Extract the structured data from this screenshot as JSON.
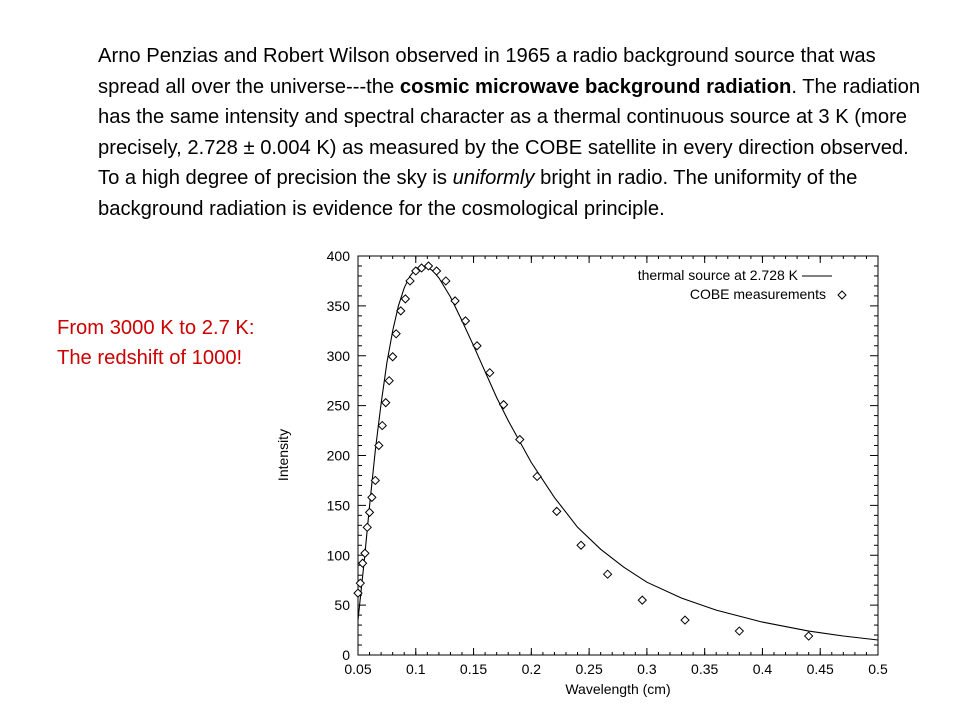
{
  "paragraph": {
    "t1": "Arno Penzias and Robert Wilson observed in 1965 a radio background source that was spread all over the universe---the ",
    "bold": "cosmic microwave background radiation",
    "t2": ". The radiation has the same intensity and spectral character as a thermal continuous source at 3 K (more precisely, 2.728 ± 0.004 K) as measured by the COBE satellite in every direction observed. To a high degree of precision the sky is ",
    "italic": "uniformly",
    "t3": " bright in radio. The uniformity of the background radiation is evidence for the cosmological principle."
  },
  "note": {
    "line1": "From 3000 K to 2.7 K:",
    "line2": "The redshift of 1000!",
    "color": "#cc0000"
  },
  "chart_data": {
    "type": "line",
    "xlabel": "Wavelength (cm)",
    "ylabel": "Intensity",
    "xlim": [
      0.05,
      0.5
    ],
    "ylim": [
      0,
      400
    ],
    "xticks": [
      "0.05",
      "0.1",
      "0.15",
      "0.2",
      "0.25",
      "0.3",
      "0.35",
      "0.4",
      "0.45",
      "0.5"
    ],
    "yticks": [
      "0",
      "50",
      "100",
      "150",
      "200",
      "250",
      "300",
      "350",
      "400"
    ],
    "grid": false,
    "legend_position": "top-right",
    "series": [
      {
        "name": "thermal source at 2.728 K",
        "style": "line",
        "x": [
          0.05,
          0.055,
          0.06,
          0.065,
          0.07,
          0.075,
          0.08,
          0.085,
          0.09,
          0.095,
          0.1,
          0.105,
          0.11,
          0.115,
          0.12,
          0.13,
          0.14,
          0.15,
          0.16,
          0.17,
          0.18,
          0.2,
          0.22,
          0.24,
          0.26,
          0.28,
          0.3,
          0.33,
          0.36,
          0.4,
          0.44,
          0.47,
          0.5
        ],
        "values": [
          35,
          90,
          150,
          205,
          252,
          293,
          325,
          350,
          368,
          380,
          387,
          390,
          389,
          385,
          378,
          359,
          335,
          310,
          284,
          258,
          235,
          193,
          158,
          128,
          106,
          88,
          73,
          57,
          45,
          33,
          24,
          19,
          15
        ]
      },
      {
        "name": "COBE measurements",
        "style": "diamond",
        "x": [
          0.05,
          0.052,
          0.054,
          0.056,
          0.058,
          0.06,
          0.062,
          0.065,
          0.068,
          0.071,
          0.074,
          0.077,
          0.08,
          0.083,
          0.087,
          0.091,
          0.095,
          0.1,
          0.105,
          0.111,
          0.118,
          0.126,
          0.134,
          0.143,
          0.153,
          0.164,
          0.176,
          0.19,
          0.205,
          0.222,
          0.243,
          0.266,
          0.296,
          0.333,
          0.38,
          0.44
        ],
        "values": [
          62,
          72,
          92,
          102,
          128,
          143,
          158,
          175,
          210,
          230,
          253,
          275,
          299,
          322,
          345,
          357,
          375,
          385,
          388,
          390,
          385,
          375,
          355,
          335,
          310,
          283,
          251,
          216,
          179,
          144,
          110,
          81,
          55,
          35,
          24,
          19
        ]
      }
    ]
  }
}
